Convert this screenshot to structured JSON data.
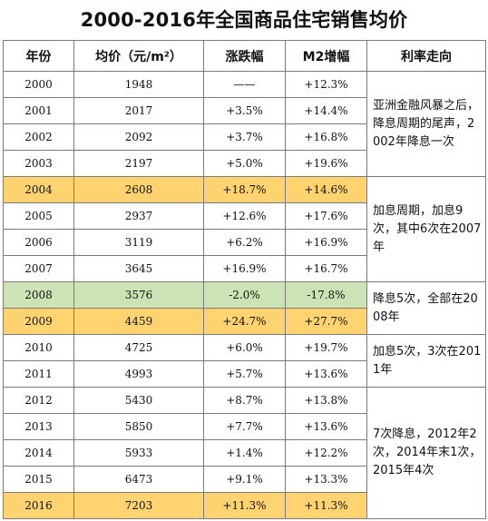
{
  "title": "2000-2016年全国商品住宅销售均价",
  "headers": {
    "year": "年份",
    "price": "均价（元/m²）",
    "change": "涨跌幅",
    "m2": "M2增幅",
    "rate": "利率走向"
  },
  "rows": [
    {
      "year": "2000",
      "price": "1948",
      "change": "——",
      "m2": "+12.3%"
    },
    {
      "year": "2001",
      "price": "2017",
      "change": "+3.5%",
      "m2": "+14.4%"
    },
    {
      "year": "2002",
      "price": "2092",
      "change": "+3.7%",
      "m2": "+16.8%"
    },
    {
      "year": "2003",
      "price": "2197",
      "change": "+5.0%",
      "m2": "+19.6%"
    },
    {
      "year": "2004",
      "price": "2608",
      "change": "+18.7%",
      "m2": "+14.6%"
    },
    {
      "year": "2005",
      "price": "2937",
      "change": "+12.6%",
      "m2": "+17.6%"
    },
    {
      "year": "2006",
      "price": "3119",
      "change": "+6.2%",
      "m2": "+16.9%"
    },
    {
      "year": "2007",
      "price": "3645",
      "change": "+16.9%",
      "m2": "+16.7%"
    },
    {
      "year": "2008",
      "price": "3576",
      "change": "-2.0%",
      "m2": "-17.8%"
    },
    {
      "year": "2009",
      "price": "4459",
      "change": "+24.7%",
      "m2": "+27.7%"
    },
    {
      "year": "2010",
      "price": "4725",
      "change": "+6.0%",
      "m2": "+19.7%"
    },
    {
      "year": "2011",
      "price": "4993",
      "change": "+5.7%",
      "m2": "+13.6%"
    },
    {
      "year": "2012",
      "price": "5430",
      "change": "+8.7%",
      "m2": "+13.8%"
    },
    {
      "year": "2013",
      "price": "5850",
      "change": "+7.7%",
      "m2": "+13.6%"
    },
    {
      "year": "2014",
      "price": "5933",
      "change": "+1.4%",
      "m2": "+12.2%"
    },
    {
      "year": "2015",
      "price": "6473",
      "change": "+9.1%",
      "m2": "+13.3%"
    },
    {
      "year": "2016",
      "price": "7203",
      "change": "+11.3%",
      "m2": "+11.3%"
    }
  ],
  "rate_notes": [
    "亚洲金融风暴之后，降息周期的尾声，2002年降息一次",
    "加息周期，加息9次，其中6次在2007年",
    "降息5次，全部在2008年",
    "加息5次，3次在2011年",
    "7次降息，2012年2次，2014年末1次，2015年4次"
  ],
  "highlight_colors": {
    "orange": "#ffd370",
    "green": "#cde3b6"
  }
}
